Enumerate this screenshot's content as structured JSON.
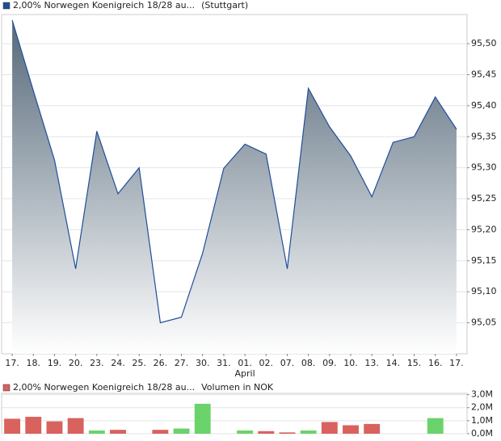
{
  "chart_data": [
    {
      "type": "area",
      "series": [
        {
          "name": "2,00% Norwegen Koenigreich 18/28 au...",
          "color": "#1f4e9a",
          "values": [
            95.538,
            95.424,
            95.312,
            95.137,
            95.359,
            95.258,
            95.3,
            95.05,
            95.059,
            95.162,
            95.299,
            95.338,
            95.322,
            95.137,
            95.428,
            95.366,
            95.319,
            95.253,
            95.341,
            95.35,
            95.414,
            95.362
          ]
        }
      ],
      "subtitle": "(Stuttgart)",
      "categories": [
        "17.",
        "18.",
        "19.",
        "20.",
        "23.",
        "24.",
        "25.",
        "26.",
        "27.",
        "30.",
        "31.",
        "01.",
        "02.",
        "07.",
        "08.",
        "09.",
        "10.",
        "13.",
        "14.",
        "15.",
        "16.",
        "17."
      ],
      "month_labels": [
        {
          "label": "April",
          "at": "01."
        }
      ],
      "ylim": [
        95.0,
        95.547
      ],
      "yticks": [
        {
          "value": 95.05,
          "label": "95,05"
        },
        {
          "value": 95.1,
          "label": "95,10"
        },
        {
          "value": 95.15,
          "label": "95,15"
        },
        {
          "value": 95.2,
          "label": "95,20"
        },
        {
          "value": 95.25,
          "label": "95,25"
        },
        {
          "value": 95.3,
          "label": "95,30"
        },
        {
          "value": 95.35,
          "label": "95,35"
        },
        {
          "value": 95.4,
          "label": "95,40"
        },
        {
          "value": 95.45,
          "label": "95,45"
        },
        {
          "value": 95.5,
          "label": "95,50"
        }
      ],
      "grid": true
    },
    {
      "type": "bar",
      "series": [
        {
          "name": "2,00% Norwegen Koenigreich 18/28 au...",
          "color": "#d9625e",
          "values": [
            1.15,
            1.3,
            0.95,
            1.2,
            0.25,
            0.3,
            null,
            0.3,
            0.4,
            2.3,
            null,
            0.25,
            0.2,
            0.1,
            0.25,
            0.9,
            0.65,
            0.75,
            null,
            null,
            1.2,
            null
          ],
          "bar_colors": [
            "#d9625e",
            "#d9625e",
            "#d9625e",
            "#d9625e",
            "#6bd36b",
            "#d9625e",
            null,
            "#d9625e",
            "#6bd36b",
            "#6bd36b",
            null,
            "#6bd36b",
            "#d9625e",
            "#d9625e",
            "#6bd36b",
            "#d9625e",
            "#d9625e",
            "#d9625e",
            null,
            null,
            "#6bd36b",
            null
          ]
        }
      ],
      "subtitle": "Volumen in NOK",
      "ylim": [
        0,
        3.1
      ],
      "yticks": [
        {
          "value": 0,
          "label": "0,0M"
        },
        {
          "value": 1,
          "label": "1,0M"
        },
        {
          "value": 2,
          "label": "2,0M"
        },
        {
          "value": 3,
          "label": "3,0M"
        }
      ],
      "grid": true
    }
  ]
}
